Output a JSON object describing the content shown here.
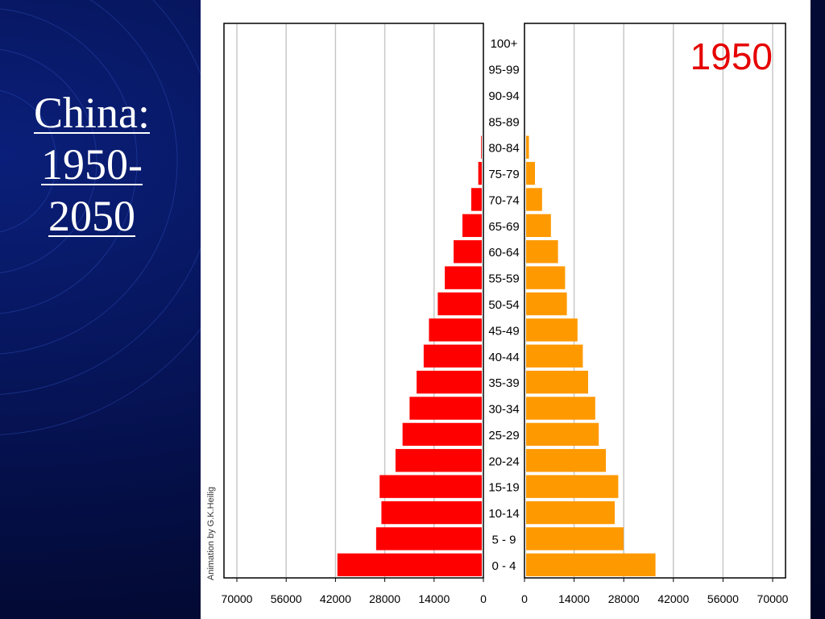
{
  "slide": {
    "title_lines": [
      "China:",
      "1950-",
      "2050"
    ]
  },
  "chart_credit": "Animation by G.K.Heilig",
  "colors": {
    "male": "#ff0000",
    "female": "#ff9900",
    "year_label": "#e60000"
  },
  "chart_data": {
    "type": "bar",
    "title": "1950",
    "orientation": "horizontal",
    "layout": "population-pyramid",
    "categories": [
      "100+",
      "95-99",
      "90-94",
      "85-89",
      "80-84",
      "75-79",
      "70-74",
      "65-69",
      "60-64",
      "55-59",
      "50-54",
      "45-49",
      "40-44",
      "35-39",
      "30-34",
      "25-29",
      "20-24",
      "15-19",
      "10-14",
      "5 - 9",
      "0 - 4"
    ],
    "series": [
      {
        "side": "left",
        "color": "#ff0000",
        "values": [
          0,
          0,
          0,
          0,
          200,
          1000,
          3000,
          5500,
          8000,
          10500,
          12500,
          15000,
          16500,
          18500,
          20500,
          22500,
          24500,
          29000,
          28500,
          30000,
          41000
        ]
      },
      {
        "side": "right",
        "color": "#ff9900",
        "values": [
          0,
          0,
          0,
          0,
          800,
          2500,
          4500,
          7000,
          9000,
          11000,
          11500,
          14500,
          16000,
          17500,
          19500,
          20500,
          22500,
          26000,
          25000,
          27500,
          36500
        ]
      }
    ],
    "xlim_left": [
      70000,
      0
    ],
    "xlim_right": [
      0,
      70000
    ],
    "left_ticks": [
      "70000",
      "56000",
      "42000",
      "28000",
      "14000",
      "0"
    ],
    "right_ticks": [
      "0",
      "14000",
      "28000",
      "42000",
      "56000",
      "70000"
    ],
    "tick_values": [
      0,
      14000,
      28000,
      42000,
      56000,
      70000
    ],
    "grid": true
  }
}
